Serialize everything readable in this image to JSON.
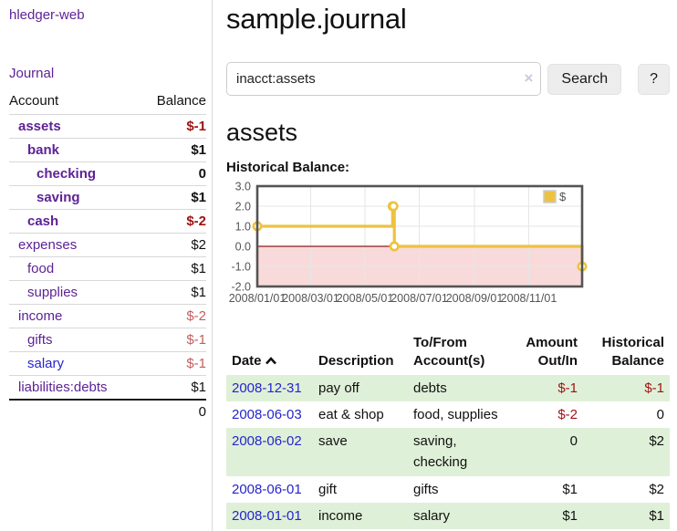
{
  "colors": {
    "accent_purple": "#5e2296",
    "link_blue": "#2525cc",
    "negative_strong": "#9d1313",
    "negative_soft": "#c0605f",
    "row_green": "#dff0d8",
    "chart_gold": "#edc240"
  },
  "app_title": "hledger-web",
  "sidebar": {
    "journal_link": "Journal",
    "accounts": {
      "header_account": "Account",
      "header_balance": "Balance",
      "rows": [
        {
          "name": "assets",
          "indent": 0,
          "balance": "$-1",
          "emphasis": true,
          "balance_tone": "negative-strong",
          "link_tone": "purple"
        },
        {
          "name": "bank",
          "indent": 1,
          "balance": "$1",
          "emphasis": true,
          "balance_tone": "normal",
          "link_tone": "purple"
        },
        {
          "name": "checking",
          "indent": 2,
          "balance": "0",
          "emphasis": true,
          "balance_tone": "normal",
          "link_tone": "purple"
        },
        {
          "name": "saving",
          "indent": 2,
          "balance": "$1",
          "emphasis": true,
          "balance_tone": "normal",
          "link_tone": "purple"
        },
        {
          "name": "cash",
          "indent": 1,
          "balance": "$-2",
          "emphasis": true,
          "balance_tone": "negative-strong",
          "link_tone": "purple"
        },
        {
          "name": "expenses",
          "indent": 0,
          "balance": "$2",
          "emphasis": false,
          "balance_tone": "normal",
          "link_tone": "purple"
        },
        {
          "name": "food",
          "indent": 1,
          "balance": "$1",
          "emphasis": false,
          "balance_tone": "normal",
          "link_tone": "purple"
        },
        {
          "name": "supplies",
          "indent": 1,
          "balance": "$1",
          "emphasis": false,
          "balance_tone": "normal",
          "link_tone": "purple"
        },
        {
          "name": "income",
          "indent": 0,
          "balance": "$-2",
          "emphasis": false,
          "balance_tone": "negative-soft",
          "link_tone": "purple"
        },
        {
          "name": "gifts",
          "indent": 1,
          "balance": "$-1",
          "emphasis": false,
          "balance_tone": "negative-soft",
          "link_tone": "purple"
        },
        {
          "name": "salary",
          "indent": 1,
          "balance": "$-1",
          "emphasis": false,
          "balance_tone": "negative-soft",
          "link_tone": "blue"
        },
        {
          "name": "liabilities:debts",
          "indent": 0,
          "balance": "$1",
          "emphasis": false,
          "balance_tone": "normal",
          "link_tone": "purple"
        }
      ],
      "total": "0"
    }
  },
  "main": {
    "title": "sample.journal",
    "search": {
      "value": "inacct:assets",
      "clear_icon": "×",
      "search_button": "Search",
      "help_button": "?"
    },
    "account_heading": "assets",
    "chart_heading": "Historical Balance:"
  },
  "chart_data": {
    "type": "line",
    "style": "step-after",
    "title": "Historical Balance",
    "series": [
      {
        "name": "$",
        "color": "#edc240",
        "points": [
          [
            "2008-01-01",
            1
          ],
          [
            "2008-06-01",
            2
          ],
          [
            "2008-06-02",
            2
          ],
          [
            "2008-06-03",
            0
          ],
          [
            "2008-12-31",
            -1
          ]
        ]
      }
    ],
    "x_range": [
      "2008-01-01",
      "2008-12-31"
    ],
    "x_tick_labels": [
      "2008/01/01",
      "2008/03/01",
      "2008/05/01",
      "2008/07/01",
      "2008/09/01",
      "2008/11/01"
    ],
    "y_ticks": [
      "3.0",
      "2.0",
      "1.0",
      "0.0",
      "-1.0",
      "-2.0"
    ],
    "ylim": [
      -2,
      3
    ],
    "grid": true,
    "legend": {
      "label": "$",
      "position": "top-right"
    },
    "negative_region": {
      "from": 0,
      "to": -2,
      "fill": "#f9dada",
      "line": "#8d1a1a"
    }
  },
  "transactions": {
    "columns": [
      "Date",
      "Description",
      "To/From Account(s)",
      "Amount Out/In",
      "Historical Balance"
    ],
    "sort": {
      "column": "Date",
      "direction": "ascending"
    },
    "rows": [
      {
        "date": "2008-12-31",
        "description": "pay off",
        "accounts": "debts",
        "amount": "$-1",
        "amount_tone": "negative",
        "balance": "$-1",
        "balance_tone": "negative"
      },
      {
        "date": "2008-06-03",
        "description": "eat & shop",
        "accounts": "food, supplies",
        "amount": "$-2",
        "amount_tone": "negative",
        "balance": "0",
        "balance_tone": "normal"
      },
      {
        "date": "2008-06-02",
        "description": "save",
        "accounts": "saving, checking",
        "amount": "0",
        "amount_tone": "normal",
        "balance": "$2",
        "balance_tone": "normal"
      },
      {
        "date": "2008-06-01",
        "description": "gift",
        "accounts": "gifts",
        "amount": "$1",
        "amount_tone": "normal",
        "balance": "$2",
        "balance_tone": "normal"
      },
      {
        "date": "2008-01-01",
        "description": "income",
        "accounts": "salary",
        "amount": "$1",
        "amount_tone": "normal",
        "balance": "$1",
        "balance_tone": "normal"
      }
    ]
  }
}
